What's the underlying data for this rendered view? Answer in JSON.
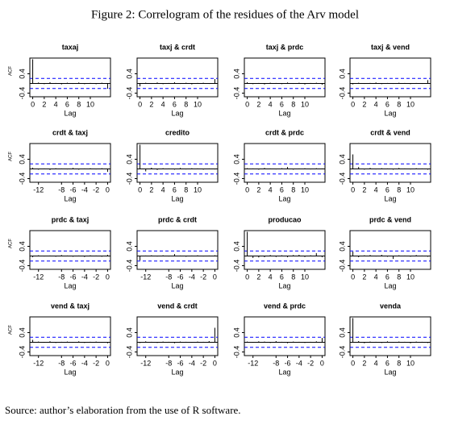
{
  "title": "Figure 2: Correlogram of the residues of the Arv model",
  "source": "Source: author’s elaboration from the use of R software.",
  "chart_data": [
    {
      "type": "acf",
      "title": "taxaj",
      "xlabel": "Lag",
      "ylabel": "ACF",
      "x": [
        0,
        1,
        2,
        3,
        4,
        5,
        6,
        7,
        8,
        9,
        10,
        11,
        12,
        13
      ],
      "values": [
        1,
        0.04,
        -0.03,
        0.05,
        0.02,
        -0.04,
        0.03,
        -0.02,
        0.04,
        -0.03,
        0.02,
        -0.03,
        0.03,
        -0.22
      ],
      "xlim": [
        -0.5,
        13.5
      ],
      "ylim": [
        -0.55,
        1.05
      ],
      "xticks": [
        0,
        2,
        4,
        6,
        8,
        10
      ],
      "yticks": [
        -0.4,
        0.4
      ],
      "ci": [
        -0.21,
        0.21
      ],
      "color": "#000000",
      "ci_color": "#0000ff"
    },
    {
      "type": "acf",
      "title": "taxj & crdt",
      "xlabel": "Lag",
      "x": [
        0,
        1,
        2,
        3,
        4,
        5,
        6,
        7,
        8,
        9,
        10,
        11,
        12,
        13
      ],
      "values": [
        -0.12,
        0.03,
        -0.02,
        0.04,
        -0.03,
        0.02,
        0.05,
        -0.02,
        0.03,
        -0.04,
        0.02,
        0.03,
        -0.02,
        0.18
      ],
      "xlim": [
        -0.5,
        13.5
      ],
      "ylim": [
        -0.55,
        1.05
      ],
      "xticks": [
        0,
        2,
        4,
        6,
        8,
        10
      ],
      "yticks": [
        -0.4,
        0.4
      ],
      "ci": [
        -0.21,
        0.21
      ],
      "color": "#000000",
      "ci_color": "#0000ff"
    },
    {
      "type": "acf",
      "title": "taxj & prdc",
      "xlabel": "Lag",
      "x": [
        0,
        1,
        2,
        3,
        4,
        5,
        6,
        7,
        8,
        9,
        10,
        11,
        12,
        13
      ],
      "values": [
        0.05,
        -0.03,
        0.02,
        -0.04,
        0.03,
        0.02,
        -0.03,
        0.04,
        -0.02,
        0.03,
        -0.04,
        0.02,
        0.03,
        -0.05
      ],
      "xlim": [
        -0.5,
        13.5
      ],
      "ylim": [
        -0.55,
        1.05
      ],
      "xticks": [
        0,
        2,
        4,
        6,
        8,
        10
      ],
      "yticks": [
        -0.4,
        0.4
      ],
      "ci": [
        -0.21,
        0.21
      ],
      "color": "#000000",
      "ci_color": "#0000ff"
    },
    {
      "type": "acf",
      "title": "taxj & vend",
      "xlabel": "Lag",
      "x": [
        0,
        1,
        2,
        3,
        4,
        5,
        6,
        7,
        8,
        9,
        10,
        11,
        12,
        13
      ],
      "values": [
        -0.04,
        0.03,
        -0.02,
        0.02,
        0.04,
        -0.03,
        0.02,
        -0.02,
        0.03,
        0.02,
        -0.03,
        0.02,
        -0.02,
        0.14
      ],
      "xlim": [
        -0.5,
        13.5
      ],
      "ylim": [
        -0.55,
        1.05
      ],
      "xticks": [
        0,
        2,
        4,
        6,
        8,
        10
      ],
      "yticks": [
        -0.4,
        0.4
      ],
      "ci": [
        -0.21,
        0.21
      ],
      "color": "#000000",
      "ci_color": "#0000ff"
    },
    {
      "type": "acf",
      "title": "crdt & taxj",
      "xlabel": "Lag",
      "ylabel": "ACF",
      "x": [
        -13,
        -12,
        -11,
        -10,
        -9,
        -8,
        -7,
        -6,
        -5,
        -4,
        -3,
        -2,
        -1,
        0
      ],
      "values": [
        0.05,
        -0.03,
        0.02,
        -0.04,
        0.03,
        0.02,
        -0.02,
        0.04,
        -0.03,
        0.02,
        0.03,
        -0.02,
        0.03,
        -0.12
      ],
      "xlim": [
        -13.5,
        0.5
      ],
      "ylim": [
        -0.55,
        1.05
      ],
      "xticks": [
        -12,
        -8,
        -6,
        -4,
        -2,
        0
      ],
      "yticks": [
        -0.4,
        0.4
      ],
      "ci": [
        -0.21,
        0.21
      ],
      "color": "#000000",
      "ci_color": "#0000ff"
    },
    {
      "type": "acf",
      "title": "credito",
      "xlabel": "Lag",
      "x": [
        0,
        1,
        2,
        3,
        4,
        5,
        6,
        7,
        8,
        9,
        10,
        11,
        12,
        13
      ],
      "values": [
        1,
        -0.1,
        0.05,
        -0.04,
        0.03,
        0.02,
        -0.03,
        0.04,
        -0.02,
        0.03,
        0.02,
        -0.03,
        0.02,
        -0.02
      ],
      "xlim": [
        -0.5,
        13.5
      ],
      "ylim": [
        -0.55,
        1.05
      ],
      "xticks": [
        0,
        2,
        4,
        6,
        8,
        10
      ],
      "yticks": [
        -0.4,
        0.4
      ],
      "ci": [
        -0.21,
        0.21
      ],
      "color": "#000000",
      "ci_color": "#0000ff"
    },
    {
      "type": "acf",
      "title": "crdt & prdc",
      "xlabel": "Lag",
      "x": [
        0,
        1,
        2,
        3,
        4,
        5,
        6,
        7,
        8,
        9,
        10,
        11,
        12,
        13
      ],
      "values": [
        0.03,
        0.02,
        -0.03,
        0.04,
        0.02,
        -0.02,
        0.03,
        0.08,
        -0.03,
        0.02,
        0.03,
        -0.02,
        0.03,
        0.02
      ],
      "xlim": [
        -0.5,
        13.5
      ],
      "ylim": [
        -0.55,
        1.05
      ],
      "xticks": [
        0,
        2,
        4,
        6,
        8,
        10
      ],
      "yticks": [
        -0.4,
        0.4
      ],
      "ci": [
        -0.21,
        0.21
      ],
      "color": "#000000",
      "ci_color": "#0000ff"
    },
    {
      "type": "acf",
      "title": "crdt & vend",
      "xlabel": "Lag",
      "x": [
        0,
        1,
        2,
        3,
        4,
        5,
        6,
        7,
        8,
        9,
        10,
        11,
        12,
        13
      ],
      "values": [
        0.6,
        0.08,
        -0.03,
        0.04,
        -0.02,
        0.03,
        0.02,
        -0.03,
        0.04,
        0.02,
        -0.02,
        0.03,
        0.02,
        -0.03
      ],
      "xlim": [
        -0.5,
        13.5
      ],
      "ylim": [
        -0.55,
        1.05
      ],
      "xticks": [
        0,
        2,
        4,
        6,
        8,
        10
      ],
      "yticks": [
        -0.4,
        0.4
      ],
      "ci": [
        -0.21,
        0.21
      ],
      "color": "#000000",
      "ci_color": "#0000ff"
    },
    {
      "type": "acf",
      "title": "prdc & taxj",
      "xlabel": "Lag",
      "ylabel": "ACF",
      "x": [
        -13,
        -12,
        -11,
        -10,
        -9,
        -8,
        -7,
        -6,
        -5,
        -4,
        -3,
        -2,
        -1,
        0
      ],
      "values": [
        -0.05,
        0.03,
        -0.02,
        0.02,
        -0.03,
        0.04,
        0.02,
        -0.03,
        0.02,
        -0.04,
        0.03,
        0.02,
        -0.03,
        0.05
      ],
      "xlim": [
        -13.5,
        0.5
      ],
      "ylim": [
        -0.55,
        1.05
      ],
      "xticks": [
        -12,
        -8,
        -6,
        -4,
        -2,
        0
      ],
      "yticks": [
        -0.4,
        0.4
      ],
      "ci": [
        -0.21,
        0.21
      ],
      "color": "#000000",
      "ci_color": "#0000ff"
    },
    {
      "type": "acf",
      "title": "prdc & crdt",
      "xlabel": "Lag",
      "x": [
        -13,
        -12,
        -11,
        -10,
        -9,
        -8,
        -7,
        -6,
        -5,
        -4,
        -3,
        -2,
        -1,
        0
      ],
      "values": [
        -0.18,
        0.02,
        0.03,
        -0.02,
        0.03,
        -0.02,
        0.08,
        0.02,
        -0.03,
        0.02,
        0.03,
        -0.02,
        0.02,
        0.03
      ],
      "xlim": [
        -13.5,
        0.5
      ],
      "ylim": [
        -0.55,
        1.05
      ],
      "xticks": [
        -12,
        -8,
        -6,
        -4,
        -2,
        0
      ],
      "yticks": [
        -0.4,
        0.4
      ],
      "ci": [
        -0.21,
        0.21
      ],
      "color": "#000000",
      "ci_color": "#0000ff"
    },
    {
      "type": "acf",
      "title": "producao",
      "xlabel": "Lag",
      "x": [
        0,
        1,
        2,
        3,
        4,
        5,
        6,
        7,
        8,
        9,
        10,
        11,
        12,
        13
      ],
      "values": [
        1,
        -0.08,
        -0.06,
        -0.05,
        0.04,
        -0.04,
        0.03,
        -0.05,
        0.04,
        0.05,
        -0.04,
        0.03,
        0.12,
        -0.05
      ],
      "xlim": [
        -0.5,
        13.5
      ],
      "ylim": [
        -0.55,
        1.05
      ],
      "xticks": [
        0,
        2,
        4,
        6,
        8,
        10
      ],
      "yticks": [
        -0.4,
        0.4
      ],
      "ci": [
        -0.21,
        0.21
      ],
      "color": "#000000",
      "ci_color": "#0000ff"
    },
    {
      "type": "acf",
      "title": "prdc & vend",
      "xlabel": "Lag",
      "x": [
        0,
        1,
        2,
        3,
        4,
        5,
        6,
        7,
        8,
        9,
        10,
        11,
        12,
        13
      ],
      "values": [
        0.18,
        -0.05,
        0.03,
        0.04,
        -0.02,
        0.05,
        -0.03,
        -0.12,
        0.03,
        0.02,
        -0.03,
        0.04,
        0.02,
        -0.03
      ],
      "xlim": [
        -0.5,
        13.5
      ],
      "ylim": [
        -0.55,
        1.05
      ],
      "xticks": [
        0,
        2,
        4,
        6,
        8,
        10
      ],
      "yticks": [
        -0.4,
        0.4
      ],
      "ci": [
        -0.21,
        0.21
      ],
      "color": "#000000",
      "ci_color": "#0000ff"
    },
    {
      "type": "acf",
      "title": "vend & taxj",
      "xlabel": "Lag",
      "ylabel": "ACF",
      "x": [
        -13,
        -12,
        -11,
        -10,
        -9,
        -8,
        -7,
        -6,
        -5,
        -4,
        -3,
        -2,
        -1,
        0
      ],
      "values": [
        0.1,
        0.03,
        -0.02,
        0.04,
        -0.03,
        0.02,
        0.03,
        -0.02,
        0.04,
        -0.03,
        0.02,
        0.03,
        -0.02,
        -0.04
      ],
      "xlim": [
        -13.5,
        0.5
      ],
      "ylim": [
        -0.55,
        1.05
      ],
      "xticks": [
        -12,
        -8,
        -6,
        -4,
        -2,
        0
      ],
      "yticks": [
        -0.4,
        0.4
      ],
      "ci": [
        -0.21,
        0.21
      ],
      "color": "#000000",
      "ci_color": "#0000ff"
    },
    {
      "type": "acf",
      "title": "vend & crdt",
      "xlabel": "Lag",
      "x": [
        -13,
        -12,
        -11,
        -10,
        -9,
        -8,
        -7,
        -6,
        -5,
        -4,
        -3,
        -2,
        -1,
        0
      ],
      "values": [
        -0.03,
        0.04,
        0.02,
        -0.03,
        0.03,
        0.02,
        -0.04,
        0.03,
        0.02,
        -0.02,
        0.03,
        0.02,
        0.05,
        0.6
      ],
      "xlim": [
        -13.5,
        0.5
      ],
      "ylim": [
        -0.55,
        1.05
      ],
      "xticks": [
        -12,
        -8,
        -6,
        -4,
        -2,
        0
      ],
      "yticks": [
        -0.4,
        0.4
      ],
      "ci": [
        -0.21,
        0.21
      ],
      "color": "#000000",
      "ci_color": "#0000ff"
    },
    {
      "type": "acf",
      "title": "vend & prdc",
      "xlabel": "Lag",
      "x": [
        -13,
        -12,
        -11,
        -10,
        -9,
        -8,
        -7,
        -6,
        -5,
        -4,
        -3,
        -2,
        -1,
        0
      ],
      "values": [
        0.03,
        -0.02,
        0.04,
        0.03,
        -0.03,
        0.05,
        0.02,
        -0.04,
        0.03,
        0.02,
        -0.03,
        0.02,
        0.04,
        0.18
      ],
      "xlim": [
        -13.5,
        0.5
      ],
      "ylim": [
        -0.55,
        1.05
      ],
      "xticks": [
        -12,
        -8,
        -6,
        -4,
        -2,
        0
      ],
      "yticks": [
        -0.4,
        0.4
      ],
      "ci": [
        -0.21,
        0.21
      ],
      "color": "#000000",
      "ci_color": "#0000ff"
    },
    {
      "type": "acf",
      "title": "venda",
      "xlabel": "Lag",
      "x": [
        0,
        1,
        2,
        3,
        4,
        5,
        6,
        7,
        8,
        9,
        10,
        11,
        12,
        13
      ],
      "values": [
        1,
        0.05,
        -0.04,
        0.03,
        0.02,
        -0.03,
        0.04,
        -0.02,
        0.03,
        0.02,
        -0.04,
        0.03,
        0.02,
        -0.03
      ],
      "xlim": [
        -0.5,
        13.5
      ],
      "ylim": [
        -0.55,
        1.05
      ],
      "xticks": [
        0,
        2,
        4,
        6,
        8,
        10
      ],
      "yticks": [
        -0.4,
        0.4
      ],
      "ci": [
        -0.21,
        0.21
      ],
      "color": "#000000",
      "ci_color": "#0000ff"
    }
  ]
}
